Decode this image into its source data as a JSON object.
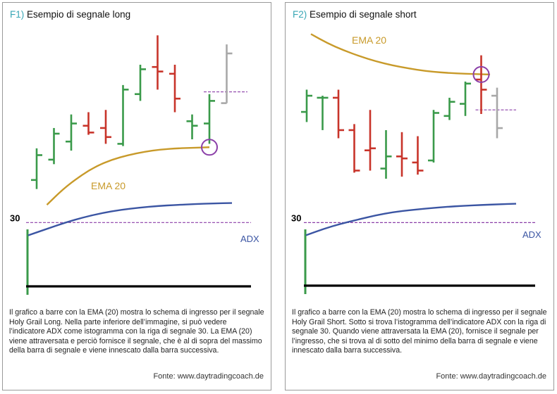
{
  "colors": {
    "up": "#3a9a4a",
    "down": "#c8342a",
    "ema": "#c89a2a",
    "adx": "#3b55a3",
    "signal": "#8b3fa8",
    "future": "#a8a8a8",
    "axis": "#000000",
    "figure_label": "#3aa7b6"
  },
  "panels": [
    {
      "fig_label": "F1)",
      "title": "Esempio di segnale long",
      "ema_label": "EMA 20",
      "adx_label": "ADX",
      "level_label": "30",
      "caption": "Il grafico a barre con la EMA (20) mostra lo schema di ingresso per il segnale Holy Grail Long. Nella parte inferiore dell’immagine, si può vedere l’indicatore ADX come istogramma con la riga di segnale 30. La EMA (20) viene attraversata e perciò fornisce il segnale, che è al di sopra del massimo della barra di segnale e viene innescato dalla barra successiva.",
      "source": "Fonte: www.daytradingcoach.de"
    },
    {
      "fig_label": "F2)",
      "title": "Esempio di segnale short",
      "ema_label": "EMA 20",
      "adx_label": "ADX",
      "level_label": "30",
      "caption": "Il grafico a barre con la EMA (20) mostra lo schema di ingresso per il segnale Holy Grail Short. Sotto si trova l’istogramma dell’indicatore ADX con la riga di segnale 30. Quando viene attraversata la EMA (20), fornisce il segnale per l’ingresso, che si trova al di sotto del minimo della barra di segnale e viene innescato dalla barra successiva.",
      "source": "Fonte: www.daytradingcoach.de"
    }
  ],
  "chart_data": [
    {
      "type": "ohlc",
      "title": "Esempio di segnale long",
      "bars": [
        {
          "o": 60,
          "h": 88,
          "l": 52,
          "c": 82,
          "dir": "up"
        },
        {
          "o": 78,
          "h": 106,
          "l": 74,
          "c": 101,
          "dir": "up"
        },
        {
          "o": 94,
          "h": 118,
          "l": 86,
          "c": 110,
          "dir": "up"
        },
        {
          "o": 108,
          "h": 120,
          "l": 100,
          "c": 102,
          "dir": "down"
        },
        {
          "o": 106,
          "h": 122,
          "l": 92,
          "c": 98,
          "dir": "down"
        },
        {
          "o": 92,
          "h": 144,
          "l": 90,
          "c": 140,
          "dir": "up"
        },
        {
          "o": 136,
          "h": 162,
          "l": 130,
          "c": 158,
          "dir": "up"
        },
        {
          "o": 160,
          "h": 188,
          "l": 140,
          "c": 156,
          "dir": "down"
        },
        {
          "o": 154,
          "h": 162,
          "l": 120,
          "c": 132,
          "dir": "down"
        },
        {
          "o": 112,
          "h": 118,
          "l": 96,
          "c": 108,
          "dir": "up"
        },
        {
          "o": 110,
          "h": 136,
          "l": 92,
          "c": 130,
          "dir": "up",
          "entry": true
        },
        {
          "o": 128,
          "h": 180,
          "l": 128,
          "c": 172,
          "dir": "future"
        }
      ],
      "ema": [
        38,
        52,
        63,
        72,
        78,
        82,
        85,
        87,
        88,
        88.5,
        89
      ],
      "signal_level": 138,
      "ylim": [
        30,
        195
      ],
      "adx": [
        24,
        27,
        30,
        32.5,
        34.5,
        36,
        37,
        37.8,
        38.3,
        38.7,
        39,
        39.2
      ],
      "adx_level": 30,
      "adx_ylim": [
        0,
        45
      ]
    },
    {
      "type": "ohlc",
      "title": "Esempio di segnale short",
      "bars": [
        {
          "o": 128,
          "h": 150,
          "l": 118,
          "c": 144,
          "dir": "up"
        },
        {
          "o": 142,
          "h": 144,
          "l": 110,
          "c": 142,
          "dir": "up"
        },
        {
          "o": 142,
          "h": 150,
          "l": 102,
          "c": 110,
          "dir": "down"
        },
        {
          "o": 110,
          "h": 116,
          "l": 68,
          "c": 70,
          "dir": "down"
        },
        {
          "o": 90,
          "h": 130,
          "l": 70,
          "c": 92,
          "dir": "down"
        },
        {
          "o": 72,
          "h": 110,
          "l": 62,
          "c": 84,
          "dir": "up"
        },
        {
          "o": 84,
          "h": 108,
          "l": 64,
          "c": 82,
          "dir": "down"
        },
        {
          "o": 78,
          "h": 104,
          "l": 66,
          "c": 70,
          "dir": "down"
        },
        {
          "o": 80,
          "h": 130,
          "l": 78,
          "c": 127,
          "dir": "up"
        },
        {
          "o": 124,
          "h": 142,
          "l": 120,
          "c": 138,
          "dir": "up"
        },
        {
          "o": 136,
          "h": 158,
          "l": 124,
          "c": 156,
          "dir": "up"
        },
        {
          "o": 160,
          "h": 184,
          "l": 126,
          "c": 150,
          "dir": "down",
          "entry": true
        },
        {
          "o": 144,
          "h": 152,
          "l": 102,
          "c": 112,
          "dir": "future"
        }
      ],
      "ema": [
        205,
        196,
        189,
        183,
        178,
        174,
        171,
        168.5,
        167,
        166,
        165.5,
        165
      ],
      "signal_level": 130,
      "ylim": [
        55,
        215
      ],
      "adx": [
        24,
        27,
        29.5,
        31.5,
        33.5,
        35,
        36,
        36.8,
        37.5,
        38,
        38.4,
        38.7,
        39
      ],
      "adx_level": 30,
      "adx_ylim": [
        0,
        45
      ]
    }
  ]
}
